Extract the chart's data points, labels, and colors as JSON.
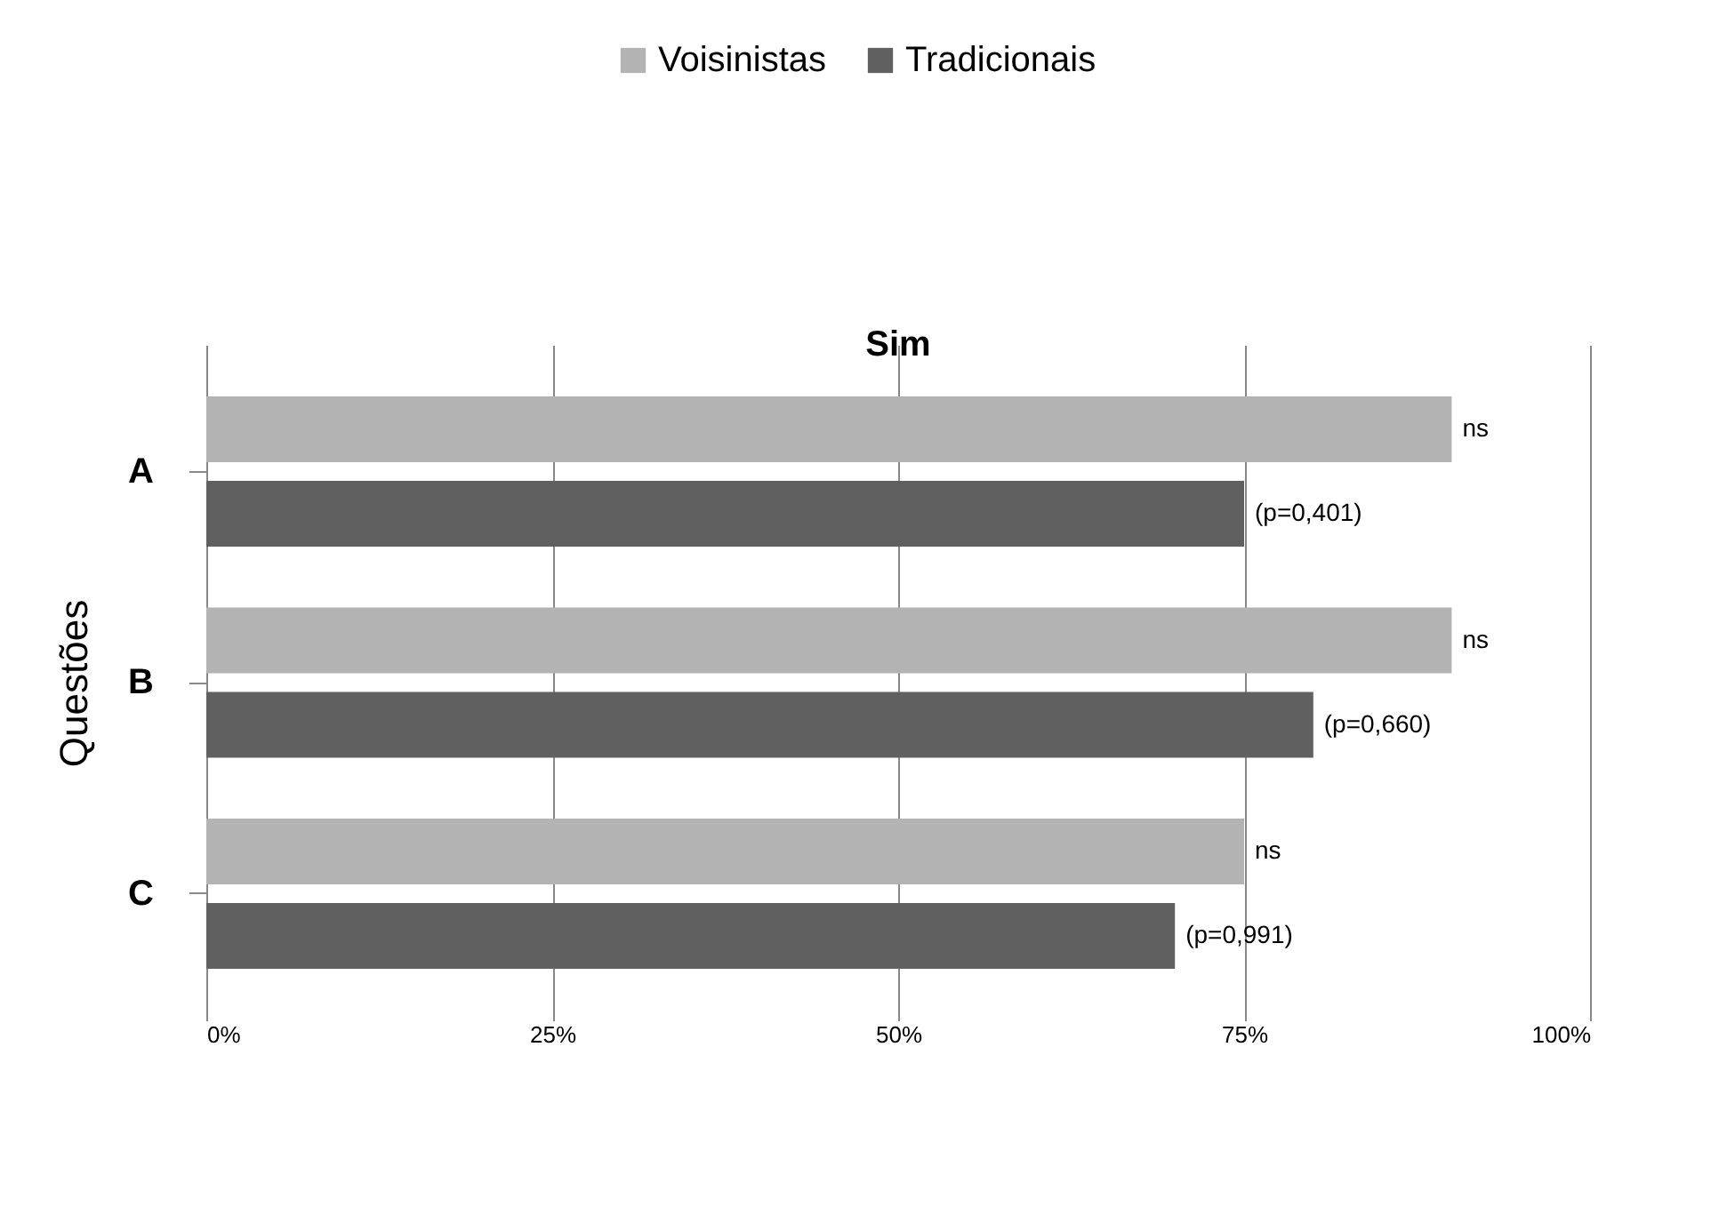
{
  "chart_data": {
    "type": "bar",
    "orientation": "horizontal",
    "title": "Sim",
    "ylabel": "Questões",
    "categories": [
      "A",
      "B",
      "C"
    ],
    "series": [
      {
        "name": "Voisinistas",
        "color": "#b3b3b3",
        "values": [
          90,
          90,
          75
        ]
      },
      {
        "name": "Tradicionais",
        "color": "#606060",
        "values": [
          75,
          80,
          70
        ]
      }
    ],
    "xlim": [
      0,
      100
    ],
    "xticks": [
      {
        "value": 0,
        "label": "0%"
      },
      {
        "value": 25,
        "label": "25%"
      },
      {
        "value": 50,
        "label": "50%"
      },
      {
        "value": 75,
        "label": "75%"
      },
      {
        "value": 100,
        "label": "100%"
      }
    ],
    "grid": "x",
    "legend": "top",
    "annotations": [
      "ns",
      "(p=0,401)",
      "ns",
      "(p=0,660)",
      "ns",
      "(p=0,991)"
    ]
  }
}
